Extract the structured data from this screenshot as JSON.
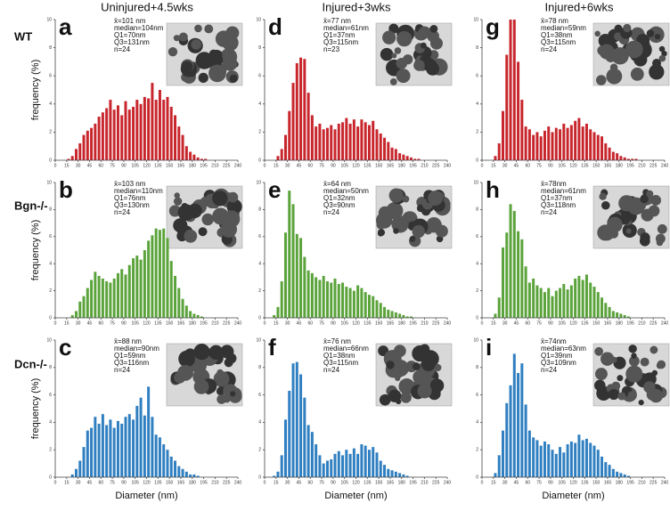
{
  "column_titles": [
    "Uninjured+4.5wks",
    "Injured+3wks",
    "Injured+6wks"
  ],
  "row_labels": [
    "WT",
    "Bgn-/-",
    "Dcn-/-"
  ],
  "chart_data": [
    {
      "type": "histogram",
      "panel_label": "a",
      "color": "#c8262d",
      "ylabel": "frequency (%)",
      "annotations": [
        "x̄=101 nm",
        "median=104nm",
        "Q1=70nm",
        "Q3=131nm",
        "n=24"
      ],
      "bins": [
        0,
        5,
        10,
        15,
        20,
        25,
        30,
        35,
        40,
        45,
        50,
        55,
        60,
        65,
        70,
        75,
        80,
        85,
        90,
        95,
        100,
        105,
        110,
        115,
        120,
        125,
        130,
        135,
        140,
        145,
        150,
        155,
        160,
        165,
        170,
        175,
        180,
        185,
        190,
        195,
        200,
        205,
        210,
        215,
        220,
        225,
        230,
        235,
        240
      ],
      "values": [
        0,
        0,
        0,
        0.1,
        0.3,
        0.8,
        1.2,
        1.8,
        2.1,
        2.3,
        2.6,
        3.1,
        3.4,
        3.7,
        4.3,
        3.6,
        3.9,
        3.2,
        4.2,
        3.6,
        3.8,
        4.3,
        4.0,
        4.5,
        4.4,
        5.5,
        4.3,
        5.0,
        4.3,
        4.5,
        3.8,
        3.2,
        2.4,
        1.8,
        1.0,
        0.6,
        0.4,
        0.2,
        0.1,
        0.1,
        0,
        0,
        0,
        0,
        0,
        0,
        0,
        0
      ],
      "xlim": [
        0,
        240
      ],
      "ylim": [
        0,
        10
      ],
      "xticks": [
        0,
        15,
        30,
        45,
        60,
        75,
        90,
        105,
        120,
        135,
        150,
        165,
        180,
        195,
        210,
        225,
        240
      ],
      "yticks": [
        0,
        2,
        4,
        6,
        8,
        10
      ]
    },
    {
      "type": "histogram",
      "panel_label": "d",
      "color": "#c8262d",
      "annotations": [
        "x̄=77 nm",
        "median=61nm",
        "Q1=37nm",
        "Q3=115nm",
        "n=23"
      ],
      "bins": [
        0,
        5,
        10,
        15,
        20,
        25,
        30,
        35,
        40,
        45,
        50,
        55,
        60,
        65,
        70,
        75,
        80,
        85,
        90,
        95,
        100,
        105,
        110,
        115,
        120,
        125,
        130,
        135,
        140,
        145,
        150,
        155,
        160,
        165,
        170,
        175,
        180,
        185,
        190,
        195,
        200,
        205,
        210,
        215,
        220,
        225,
        230,
        235,
        240
      ],
      "values": [
        0,
        0,
        0,
        0.3,
        0.8,
        1.8,
        3.5,
        5.5,
        6.9,
        7.3,
        7.2,
        4.8,
        3.2,
        2.4,
        2.6,
        2.2,
        2.3,
        2.5,
        2.2,
        2.6,
        2.7,
        3.0,
        2.6,
        2.9,
        2.4,
        2.9,
        2.7,
        2.5,
        2.8,
        2.2,
        1.9,
        1.6,
        1.3,
        0.9,
        0.8,
        0.5,
        0.4,
        0.3,
        0.2,
        0.1,
        0.1,
        0,
        0,
        0,
        0,
        0,
        0,
        0
      ],
      "xlim": [
        0,
        240
      ],
      "ylim": [
        0,
        10
      ],
      "xticks": [
        0,
        15,
        30,
        45,
        60,
        75,
        90,
        105,
        120,
        135,
        150,
        165,
        180,
        195,
        210,
        225,
        240
      ],
      "yticks": [
        0,
        2,
        4,
        6,
        8,
        10
      ]
    },
    {
      "type": "histogram",
      "panel_label": "g",
      "color": "#c8262d",
      "annotations": [
        "x̄=78 nm",
        "median=59nm",
        "Q1=38nm",
        "Q3=115nm",
        "n=24"
      ],
      "bins": [
        0,
        5,
        10,
        15,
        20,
        25,
        30,
        35,
        40,
        45,
        50,
        55,
        60,
        65,
        70,
        75,
        80,
        85,
        90,
        95,
        100,
        105,
        110,
        115,
        120,
        125,
        130,
        135,
        140,
        145,
        150,
        155,
        160,
        165,
        170,
        175,
        180,
        185,
        190,
        195,
        200,
        205,
        210,
        215,
        220,
        225,
        230,
        235,
        240
      ],
      "values": [
        0,
        0,
        0,
        0.3,
        1.2,
        3.5,
        7.5,
        10,
        10,
        7.0,
        4.3,
        2.4,
        2.2,
        1.8,
        2.0,
        1.7,
        2.1,
        2.4,
        2.0,
        2.3,
        2.2,
        2.6,
        2.3,
        2.5,
        2.8,
        3.0,
        2.4,
        2.6,
        2.2,
        2.0,
        1.8,
        1.7,
        1.2,
        0.9,
        0.6,
        0.5,
        0.3,
        0.2,
        0.1,
        0.1,
        0.1,
        0,
        0,
        0,
        0,
        0,
        0,
        0
      ],
      "xlim": [
        0,
        240
      ],
      "ylim": [
        0,
        10
      ],
      "xticks": [
        0,
        15,
        30,
        45,
        60,
        75,
        90,
        105,
        120,
        135,
        150,
        165,
        180,
        195,
        210,
        225,
        240
      ],
      "yticks": [
        0,
        2,
        4,
        6,
        8,
        10
      ]
    },
    {
      "type": "histogram",
      "panel_label": "b",
      "color": "#5ba33b",
      "ylabel": "frequency (%)",
      "annotations": [
        "x̄=103 nm",
        "median=110nm",
        "Q1=76nm",
        "Q3=130nm",
        "n=24"
      ],
      "bins": [
        0,
        5,
        10,
        15,
        20,
        25,
        30,
        35,
        40,
        45,
        50,
        55,
        60,
        65,
        70,
        75,
        80,
        85,
        90,
        95,
        100,
        105,
        110,
        115,
        120,
        125,
        130,
        135,
        140,
        145,
        150,
        155,
        160,
        165,
        170,
        175,
        180,
        185,
        190,
        195,
        200,
        205,
        210,
        215,
        220,
        225,
        230,
        235,
        240
      ],
      "values": [
        0,
        0,
        0,
        0,
        0.2,
        0.5,
        1.2,
        1.6,
        2.2,
        2.8,
        3.4,
        3.1,
        2.9,
        2.7,
        2.6,
        2.9,
        3.3,
        3.6,
        3.2,
        3.9,
        4.4,
        4.6,
        4.3,
        5.0,
        5.7,
        6.1,
        6.6,
        6.5,
        6.6,
        5.9,
        4.2,
        3.1,
        2.2,
        1.4,
        0.9,
        0.5,
        0.3,
        0.2,
        0.1,
        0,
        0,
        0,
        0,
        0,
        0,
        0,
        0,
        0
      ],
      "xlim": [
        0,
        240
      ],
      "ylim": [
        0,
        10
      ],
      "xticks": [
        0,
        15,
        30,
        45,
        60,
        75,
        90,
        105,
        120,
        135,
        150,
        165,
        180,
        195,
        210,
        225,
        240
      ],
      "yticks": [
        0,
        2,
        4,
        6,
        8,
        10
      ]
    },
    {
      "type": "histogram",
      "panel_label": "e",
      "color": "#5ba33b",
      "annotations": [
        "x̄=64 nm",
        "median=50nm",
        "Q1=32nm",
        "Q3=90nm",
        "n=24"
      ],
      "bins": [
        0,
        5,
        10,
        15,
        20,
        25,
        30,
        35,
        40,
        45,
        50,
        55,
        60,
        65,
        70,
        75,
        80,
        85,
        90,
        95,
        100,
        105,
        110,
        115,
        120,
        125,
        130,
        135,
        140,
        145,
        150,
        155,
        160,
        165,
        170,
        175,
        180,
        185,
        190,
        195,
        200,
        205,
        210,
        215,
        220,
        225,
        230,
        235,
        240
      ],
      "values": [
        0,
        0,
        0.2,
        0.8,
        2.7,
        6.3,
        9.4,
        8.4,
        6.2,
        5.9,
        4.5,
        3.5,
        3.3,
        3.0,
        2.8,
        3.1,
        2.7,
        2.6,
        2.9,
        2.5,
        2.6,
        2.3,
        2.2,
        2.0,
        2.4,
        2.2,
        1.9,
        1.7,
        1.6,
        1.3,
        1.1,
        0.8,
        0.6,
        0.5,
        0.4,
        0.3,
        0.2,
        0.1,
        0.1,
        0,
        0,
        0,
        0,
        0,
        0,
        0,
        0,
        0
      ],
      "xlim": [
        0,
        240
      ],
      "ylim": [
        0,
        10
      ],
      "xticks": [
        0,
        15,
        30,
        45,
        60,
        75,
        90,
        105,
        120,
        135,
        150,
        165,
        180,
        195,
        210,
        225,
        240
      ],
      "yticks": [
        0,
        2,
        4,
        6,
        8,
        10
      ]
    },
    {
      "type": "histogram",
      "panel_label": "h",
      "color": "#5ba33b",
      "annotations": [
        "x̄=78nm",
        "median=61nm",
        "Q1=37nm",
        "Q3=118nm",
        "n=24"
      ],
      "bins": [
        0,
        5,
        10,
        15,
        20,
        25,
        30,
        35,
        40,
        45,
        50,
        55,
        60,
        65,
        70,
        75,
        80,
        85,
        90,
        95,
        100,
        105,
        110,
        115,
        120,
        125,
        130,
        135,
        140,
        145,
        150,
        155,
        160,
        165,
        170,
        175,
        180,
        185,
        190,
        195,
        200,
        205,
        210,
        215,
        220,
        225,
        230,
        235,
        240
      ],
      "values": [
        0,
        0,
        0,
        0.3,
        1.5,
        5.2,
        6.3,
        8.4,
        7.9,
        6.4,
        5.8,
        3.8,
        2.6,
        2.9,
        2.4,
        2.2,
        1.9,
        2.2,
        1.6,
        2.0,
        2.2,
        2.5,
        2.1,
        2.4,
        2.9,
        3.1,
        2.8,
        3.2,
        2.6,
        2.3,
        1.9,
        1.5,
        1.1,
        0.8,
        0.5,
        0.4,
        0.3,
        0.2,
        0.1,
        0,
        0,
        0,
        0,
        0,
        0,
        0,
        0,
        0
      ],
      "xlim": [
        0,
        240
      ],
      "ylim": [
        0,
        10
      ],
      "xticks": [
        0,
        15,
        30,
        45,
        60,
        75,
        90,
        105,
        120,
        135,
        150,
        165,
        180,
        195,
        210,
        225,
        240
      ],
      "yticks": [
        0,
        2,
        4,
        6,
        8,
        10
      ]
    },
    {
      "type": "histogram",
      "panel_label": "c",
      "color": "#2f7fc1",
      "ylabel": "frequency (%)",
      "xlabel": "Diameter (nm)",
      "annotations": [
        "x̄=88 nm",
        "median=90nm",
        "Q1=59nm",
        "Q3=116nm",
        "n=24"
      ],
      "bins": [
        0,
        5,
        10,
        15,
        20,
        25,
        30,
        35,
        40,
        45,
        50,
        55,
        60,
        65,
        70,
        75,
        80,
        85,
        90,
        95,
        100,
        105,
        110,
        115,
        120,
        125,
        130,
        135,
        140,
        145,
        150,
        155,
        160,
        165,
        170,
        175,
        180,
        185,
        190,
        195,
        200,
        205,
        210,
        215,
        220,
        225,
        230,
        235,
        240
      ],
      "values": [
        0,
        0,
        0,
        0,
        0.2,
        0.6,
        1.2,
        2.2,
        3.4,
        3.6,
        4.4,
        3.9,
        4.6,
        3.8,
        4.2,
        3.6,
        4.1,
        3.9,
        4.4,
        4.6,
        4.2,
        5.2,
        5.8,
        4.5,
        6.6,
        4.4,
        3.1,
        2.9,
        2.4,
        2.0,
        1.5,
        1.2,
        0.8,
        0.6,
        0.4,
        0.2,
        0.2,
        0.1,
        0,
        0,
        0,
        0,
        0,
        0,
        0,
        0,
        0,
        0
      ],
      "xlim": [
        0,
        240
      ],
      "ylim": [
        0,
        10
      ],
      "xticks": [
        0,
        15,
        30,
        45,
        60,
        75,
        90,
        105,
        120,
        135,
        150,
        165,
        180,
        195,
        210,
        225,
        240
      ],
      "yticks": [
        0,
        2,
        4,
        6,
        8,
        10
      ]
    },
    {
      "type": "histogram",
      "panel_label": "f",
      "color": "#2f7fc1",
      "xlabel": "Diameter (nm)",
      "annotations": [
        "x̄=76 nm",
        "median=66nm",
        "Q1=38nm",
        "Q3=115nm",
        "n=24"
      ],
      "bins": [
        0,
        5,
        10,
        15,
        20,
        25,
        30,
        35,
        40,
        45,
        50,
        55,
        60,
        65,
        70,
        75,
        80,
        85,
        90,
        95,
        100,
        105,
        110,
        115,
        120,
        125,
        130,
        135,
        140,
        145,
        150,
        155,
        160,
        165,
        170,
        175,
        180,
        185,
        190,
        195,
        200,
        205,
        210,
        215,
        220,
        225,
        230,
        235,
        240
      ],
      "values": [
        0,
        0,
        0.1,
        0.4,
        1.6,
        4.2,
        6.3,
        8.3,
        8.4,
        7.5,
        5.8,
        3.8,
        3.3,
        2.4,
        1.6,
        1.0,
        1.2,
        1.3,
        1.7,
        1.9,
        1.6,
        2.0,
        1.7,
        2.1,
        1.7,
        2.4,
        2.3,
        2.0,
        2.2,
        1.8,
        1.2,
        0.9,
        0.6,
        0.5,
        0.4,
        0.3,
        0.2,
        0.1,
        0,
        0,
        0,
        0,
        0,
        0,
        0,
        0,
        0,
        0
      ],
      "xlim": [
        0,
        240
      ],
      "ylim": [
        0,
        10
      ],
      "xticks": [
        0,
        15,
        30,
        45,
        60,
        75,
        90,
        105,
        120,
        135,
        150,
        165,
        180,
        195,
        210,
        225,
        240
      ],
      "yticks": [
        0,
        2,
        4,
        6,
        8,
        10
      ]
    },
    {
      "type": "histogram",
      "panel_label": "i",
      "color": "#2f7fc1",
      "xlabel": "Diameter (nm)",
      "annotations": [
        "x̄=74nm",
        "median=63nm",
        "Q1=39nm",
        "Q3=109nm",
        "n=24"
      ],
      "bins": [
        0,
        5,
        10,
        15,
        20,
        25,
        30,
        35,
        40,
        45,
        50,
        55,
        60,
        65,
        70,
        75,
        80,
        85,
        90,
        95,
        100,
        105,
        110,
        115,
        120,
        125,
        130,
        135,
        140,
        145,
        150,
        155,
        160,
        165,
        170,
        175,
        180,
        185,
        190,
        195,
        200,
        205,
        210,
        215,
        220,
        225,
        230,
        235,
        240
      ],
      "values": [
        0,
        0,
        0,
        0.3,
        1.6,
        3.4,
        5.4,
        6.7,
        9.0,
        7.6,
        8.3,
        5.3,
        3.4,
        2.9,
        2.7,
        2.3,
        2.6,
        2.4,
        2.0,
        1.7,
        2.2,
        1.8,
        2.4,
        2.6,
        2.5,
        3.1,
        2.7,
        2.8,
        2.5,
        2.3,
        2.0,
        1.5,
        1.1,
        0.9,
        0.6,
        0.4,
        0.3,
        0.2,
        0.1,
        0,
        0,
        0,
        0,
        0,
        0,
        0,
        0,
        0
      ],
      "xlim": [
        0,
        240
      ],
      "ylim": [
        0,
        10
      ],
      "xticks": [
        0,
        15,
        30,
        45,
        60,
        75,
        90,
        105,
        120,
        135,
        150,
        165,
        180,
        195,
        210,
        225,
        240
      ],
      "yticks": [
        0,
        2,
        4,
        6,
        8,
        10
      ]
    }
  ]
}
